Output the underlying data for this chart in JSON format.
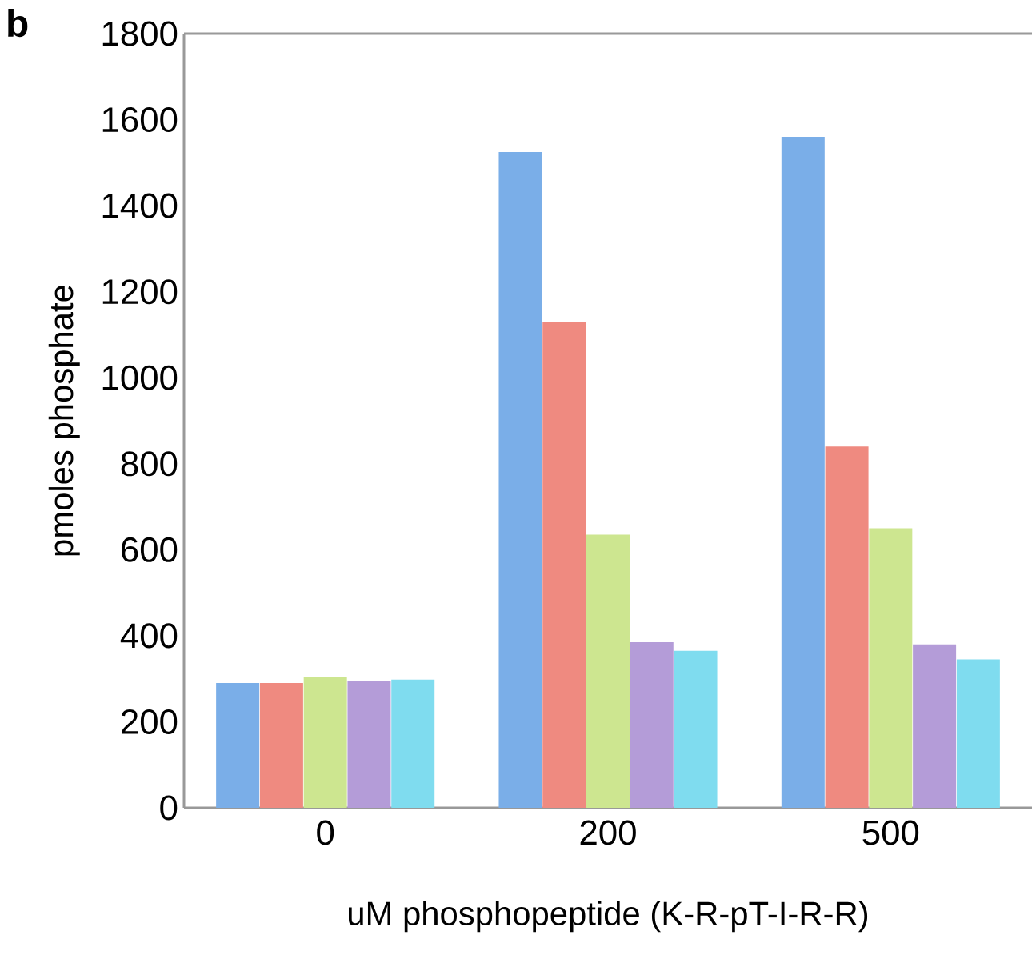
{
  "chart_data": {
    "type": "bar",
    "xlabel": "uM phosphopeptide (K-R-pT-I-R-R)",
    "ylabel": "pmoles phosphate",
    "annotations": [
      "b"
    ],
    "categories": [
      "0",
      "200",
      "500"
    ],
    "series": [
      {
        "color": "#7aaee8",
        "values": [
          290,
          1525,
          1560
        ]
      },
      {
        "color": "#ef8a80",
        "values": [
          290,
          1130,
          840
        ]
      },
      {
        "color": "#cde690",
        "values": [
          305,
          635,
          650
        ]
      },
      {
        "color": "#b49cd8",
        "values": [
          295,
          385,
          380
        ]
      },
      {
        "color": "#7fdcef",
        "values": [
          298,
          365,
          345
        ]
      }
    ],
    "ylim": [
      0,
      1800
    ],
    "yticks": [
      0,
      200,
      400,
      600,
      800,
      1000,
      1200,
      1400,
      1600,
      1800
    ],
    "grid": false
  }
}
